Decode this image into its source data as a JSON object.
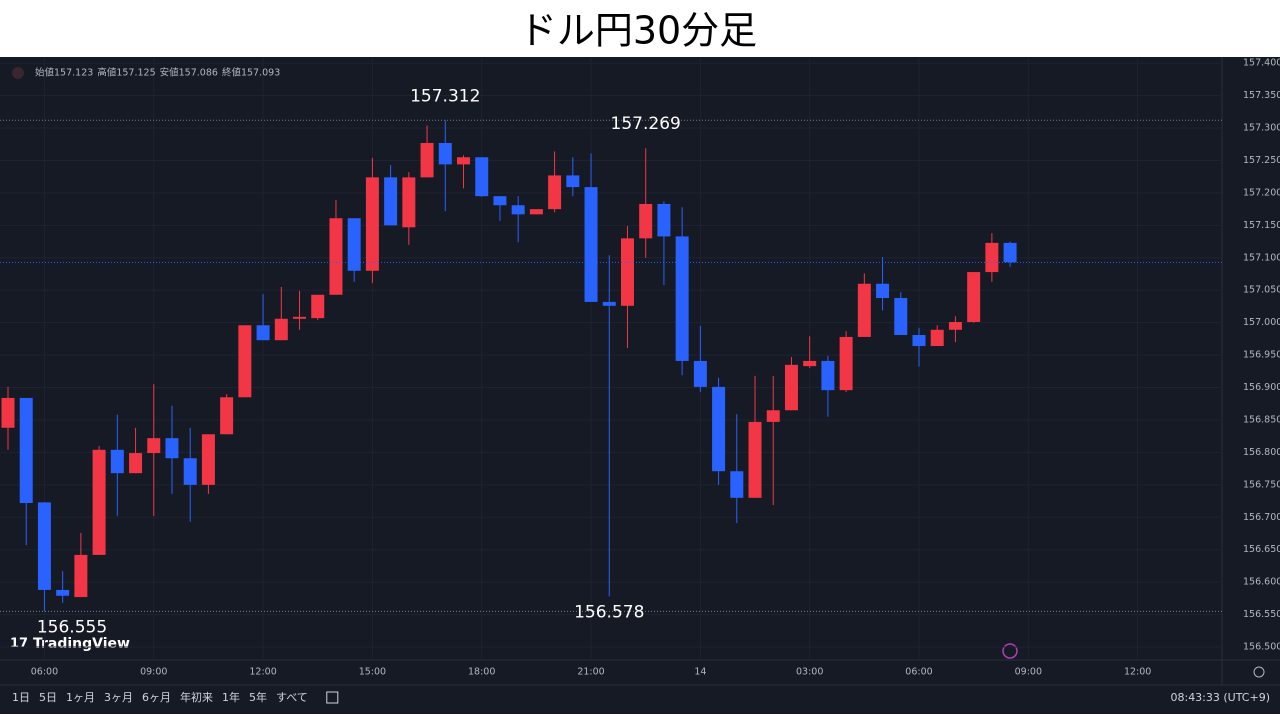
{
  "chart_data": {
    "type": "candlestick",
    "title": "ドル円30分足",
    "legend": [
      {
        "label": "始値",
        "value": "157.123"
      },
      {
        "label": "高値",
        "value": "157.125"
      },
      {
        "label": "安値",
        "value": "157.086"
      },
      {
        "label": "終値",
        "value": "157.093"
      }
    ],
    "categories": [
      null,
      null,
      "06:00",
      null,
      null,
      null,
      null,
      null,
      "09:00",
      null,
      null,
      null,
      null,
      null,
      "12:00",
      null,
      null,
      null,
      null,
      null,
      "15:00",
      null,
      null,
      null,
      null,
      null,
      "18:00",
      null,
      null,
      null,
      null,
      null,
      "21:00",
      null,
      null,
      null,
      null,
      null,
      "14",
      null,
      null,
      null,
      null,
      null,
      "03:00",
      null,
      null,
      null,
      null,
      null,
      "06:00",
      null,
      null,
      null,
      null,
      null,
      "09:00",
      null,
      null,
      null,
      null,
      null,
      "12:00",
      null,
      null,
      null
    ],
    "open": [
      156.838,
      156.884,
      156.723,
      156.588,
      156.577,
      156.642,
      156.804,
      156.768,
      156.799,
      156.822,
      156.791,
      156.75,
      156.828,
      156.885,
      156.996,
      156.973,
      157.006,
      157.007,
      157.043,
      157.161,
      157.08,
      157.224,
      157.147,
      157.224,
      157.277,
      157.244,
      157.255,
      157.195,
      157.181,
      157.167,
      157.175,
      157.227,
      157.209,
      157.032,
      157.026,
      157.13,
      157.183,
      157.133,
      156.941,
      156.901,
      156.771,
      156.73,
      156.847,
      156.865,
      156.933,
      156.941,
      156.896,
      156.978,
      157.06,
      157.038,
      156.981,
      156.964,
      156.989,
      157.001,
      157.078,
      157.123,
      null,
      null,
      null,
      null,
      null,
      null,
      null,
      null,
      null,
      null
    ],
    "high": [
      156.901,
      156.884,
      156.723,
      156.617,
      156.676,
      156.81,
      156.858,
      156.838,
      156.905,
      156.872,
      156.838,
      156.828,
      156.89,
      156.996,
      157.044,
      157.055,
      157.049,
      157.043,
      157.189,
      157.161,
      157.254,
      157.243,
      157.232,
      157.304,
      157.312,
      157.258,
      157.255,
      157.195,
      157.195,
      157.175,
      157.264,
      157.255,
      157.261,
      157.104,
      157.149,
      157.269,
      157.187,
      157.178,
      156.995,
      156.915,
      156.859,
      156.918,
      156.918,
      156.947,
      156.979,
      156.949,
      156.987,
      157.076,
      157.101,
      157.047,
      156.992,
      156.996,
      157.01,
      157.078,
      157.138,
      157.125,
      null,
      null,
      null,
      null,
      null,
      null,
      null,
      null,
      null,
      null
    ],
    "low": [
      156.804,
      156.657,
      156.555,
      156.568,
      156.577,
      156.642,
      156.702,
      156.768,
      156.702,
      156.736,
      156.693,
      156.736,
      156.828,
      156.885,
      156.973,
      156.973,
      156.989,
      157.004,
      157.043,
      157.063,
      157.061,
      157.15,
      157.12,
      157.224,
      157.172,
      157.207,
      157.194,
      157.157,
      157.124,
      157.167,
      157.17,
      157.195,
      157.032,
      156.578,
      156.961,
      157.1,
      157.058,
      156.919,
      156.893,
      156.75,
      156.691,
      156.73,
      156.719,
      156.865,
      156.93,
      156.855,
      156.893,
      156.978,
      157.019,
      156.981,
      156.932,
      156.964,
      156.97,
      157.0,
      157.063,
      157.086,
      null,
      null,
      null,
      null,
      null,
      null,
      null,
      null,
      null,
      null
    ],
    "close": [
      156.884,
      156.722,
      156.588,
      156.579,
      156.642,
      156.804,
      156.768,
      156.799,
      156.822,
      156.791,
      156.75,
      156.828,
      156.885,
      156.996,
      156.973,
      157.006,
      157.009,
      157.043,
      157.161,
      157.08,
      157.224,
      157.15,
      157.224,
      157.277,
      157.244,
      157.255,
      157.195,
      157.181,
      157.167,
      157.175,
      157.227,
      157.209,
      157.032,
      157.026,
      157.13,
      157.183,
      157.133,
      156.941,
      156.901,
      156.771,
      156.73,
      156.847,
      156.865,
      156.935,
      156.941,
      156.896,
      156.978,
      157.06,
      157.038,
      156.981,
      156.964,
      156.989,
      157.001,
      157.078,
      157.123,
      157.093,
      null,
      null,
      null,
      null,
      null,
      null,
      null,
      null,
      null,
      null
    ],
    "high_labels": [
      null,
      null,
      null,
      null,
      null,
      null,
      null,
      null,
      null,
      null,
      null,
      null,
      null,
      null,
      null,
      null,
      null,
      null,
      null,
      null,
      null,
      null,
      null,
      null,
      "157.312",
      null,
      null,
      null,
      null,
      null,
      null,
      null,
      null,
      null,
      null,
      "157.269",
      null,
      null,
      null,
      null,
      null,
      null,
      null,
      null,
      null,
      null,
      null,
      null,
      null,
      null,
      null,
      null,
      null,
      null,
      null,
      null,
      null,
      null,
      null,
      null,
      null,
      null,
      null,
      null,
      null,
      null
    ],
    "low_labels": [
      null,
      null,
      "156.555",
      null,
      null,
      null,
      null,
      null,
      null,
      null,
      null,
      null,
      null,
      null,
      null,
      null,
      null,
      null,
      null,
      null,
      null,
      null,
      null,
      null,
      null,
      null,
      null,
      null,
      null,
      null,
      null,
      null,
      null,
      "156.578",
      null,
      null,
      null,
      null,
      null,
      null,
      null,
      null,
      null,
      null,
      null,
      null,
      null,
      null,
      null,
      null,
      null,
      null,
      null,
      null,
      null,
      null,
      null,
      null,
      null,
      null,
      null,
      null,
      null,
      null,
      null,
      null
    ],
    "up_color": "#f23645",
    "down_color": "#2962ff",
    "ylim": [
      156.48,
      157.408
    ],
    "yticks": [
      {
        "value": 156.5,
        "label": "156.500"
      },
      {
        "value": 156.55,
        "label": "156.550"
      },
      {
        "value": 156.6,
        "label": "156.600"
      },
      {
        "value": 156.65,
        "label": "156.650"
      },
      {
        "value": 156.7,
        "label": "156.700"
      },
      {
        "value": 156.75,
        "label": "156.750"
      },
      {
        "value": 156.8,
        "label": "156.800"
      },
      {
        "value": 156.85,
        "label": "156.850"
      },
      {
        "value": 156.9,
        "label": "156.900"
      },
      {
        "value": 156.95,
        "label": "156.950"
      },
      {
        "value": 157.0,
        "label": "157.000"
      },
      {
        "value": 157.05,
        "label": "157.050"
      },
      {
        "value": 157.1,
        "label": "157.100"
      },
      {
        "value": 157.15,
        "label": "157.150"
      },
      {
        "value": 157.2,
        "label": "157.200"
      },
      {
        "value": 157.25,
        "label": "157.250"
      },
      {
        "value": 157.3,
        "label": "157.300"
      },
      {
        "value": 157.35,
        "label": "157.350"
      },
      {
        "value": 157.4,
        "label": "157.400"
      }
    ],
    "grid": true,
    "logo": "TradingView",
    "ranges": [
      "1日",
      "5日",
      "1ヶ月",
      "3ヶ月",
      "6ヶ月",
      "年初来",
      "1年",
      "5年",
      "すべて"
    ],
    "clock": "08:43:33 (UTC+9)"
  }
}
